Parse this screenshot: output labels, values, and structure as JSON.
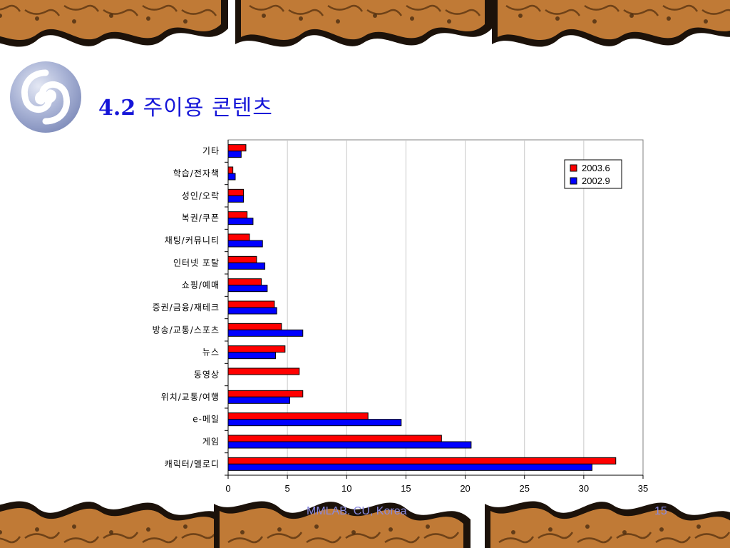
{
  "slide": {
    "title_number": "4.2",
    "title_text": "주이용 콘텐츠",
    "footer": "MMLAB. CU, Korea",
    "page": "15"
  },
  "colors": {
    "title": "#1515d8",
    "series_2003": "#ff0000",
    "series_2002": "#0000ff",
    "border_wood": "#b8742f",
    "footer": "#8a8adf"
  },
  "icons": [
    "spiral-logo-icon",
    "wood-border-pattern"
  ],
  "chart_data": {
    "type": "bar",
    "orientation": "horizontal",
    "categories": [
      "캐릭터/멜로디",
      "게임",
      "e-메일",
      "위치/교통/여행",
      "동영상",
      "뉴스",
      "방송/교통/스포츠",
      "증권/금융/재테크",
      "쇼핑/예매",
      "인터넷 포탈",
      "채팅/커뮤니티",
      "복권/쿠폰",
      "성인/오락",
      "학습/전자책",
      "기타"
    ],
    "series": [
      {
        "name": "2003.6",
        "color": "#ff0000",
        "values": [
          32.7,
          18.0,
          11.8,
          6.3,
          6.0,
          4.8,
          4.5,
          3.9,
          2.8,
          2.4,
          1.8,
          1.6,
          1.3,
          0.4,
          1.5
        ]
      },
      {
        "name": "2002.9",
        "color": "#0000ff",
        "values": [
          30.7,
          20.5,
          14.6,
          5.2,
          0,
          4.0,
          6.3,
          4.1,
          3.3,
          3.1,
          2.9,
          2.1,
          1.3,
          0.6,
          1.1
        ]
      }
    ],
    "xlim": [
      0,
      35
    ],
    "xticks": [
      0,
      5,
      10,
      15,
      20,
      25,
      30,
      35
    ],
    "grid": true,
    "legend": "top-right",
    "title": "",
    "xlabel": "",
    "ylabel": ""
  }
}
